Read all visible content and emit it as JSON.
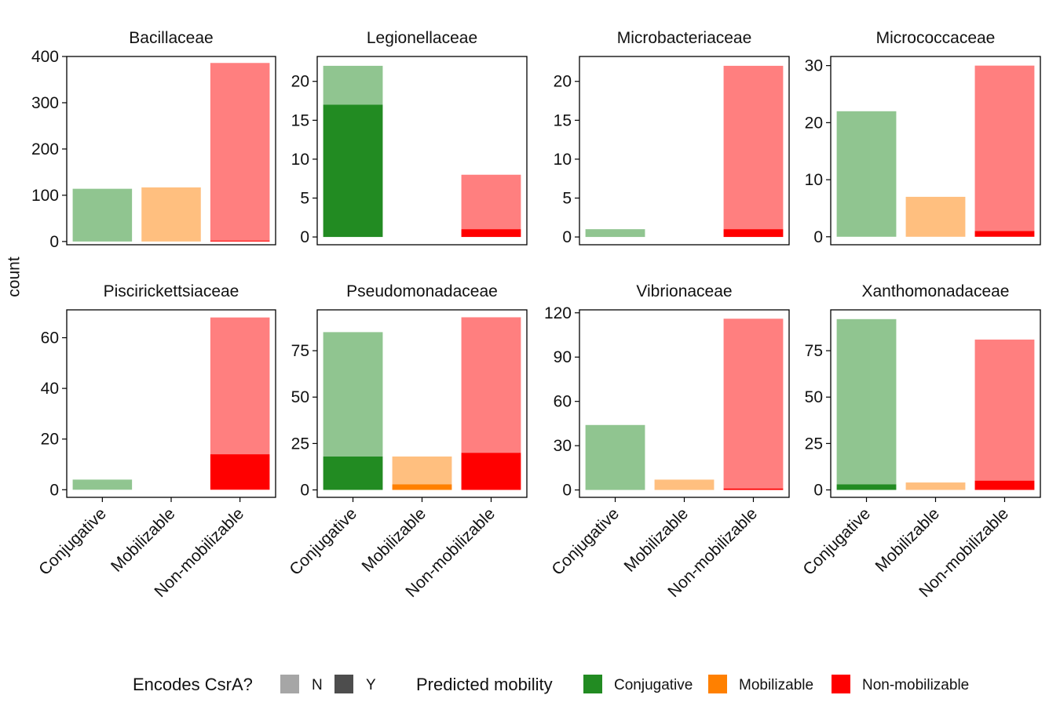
{
  "chart_data": {
    "type": "bar",
    "stacked": true,
    "ylabel": "count",
    "categories": [
      "Conjugative",
      "Mobilizable",
      "Non-mobilizable"
    ],
    "colors": {
      "Conjugative": "#228B22",
      "Mobilizable": "#FF8000",
      "Non-mobilizable": "#FF0000"
    },
    "alpha": {
      "N": 0.5,
      "Y": 1.0
    },
    "grid": false,
    "legend": {
      "position": "bottom",
      "csra_title": "Encodes CsrA?",
      "csra_entries": [
        {
          "key": "N",
          "label": "N",
          "color": "#A6A6A6"
        },
        {
          "key": "Y",
          "label": "Y",
          "color": "#4D4D4D"
        }
      ],
      "mobility_title": "Predicted mobility",
      "mobility_entries": [
        {
          "label": "Conjugative",
          "color": "#228B22"
        },
        {
          "label": "Mobilizable",
          "color": "#FF8000"
        },
        {
          "label": "Non-mobilizable",
          "color": "#FF0000"
        }
      ]
    },
    "facets": [
      {
        "title": "Bacillaceae",
        "ylim": [
          -7,
          400
        ],
        "yticks": [
          0,
          100,
          200,
          300,
          400
        ],
        "bars": [
          {
            "category": "Conjugative",
            "N": 114,
            "Y": 0
          },
          {
            "category": "Mobilizable",
            "N": 117,
            "Y": 0
          },
          {
            "category": "Non-mobilizable",
            "N": 384,
            "Y": 2
          }
        ]
      },
      {
        "title": "Legionellaceae",
        "ylim": [
          -1,
          23.2
        ],
        "yticks": [
          0,
          5,
          10,
          15,
          20
        ],
        "bars": [
          {
            "category": "Conjugative",
            "N": 5,
            "Y": 17
          },
          {
            "category": "Mobilizable",
            "N": 0,
            "Y": 0
          },
          {
            "category": "Non-mobilizable",
            "N": 7,
            "Y": 1
          }
        ]
      },
      {
        "title": "Microbacteriaceae",
        "ylim": [
          -1,
          23.2
        ],
        "yticks": [
          0,
          5,
          10,
          15,
          20
        ],
        "bars": [
          {
            "category": "Conjugative",
            "N": 1,
            "Y": 0
          },
          {
            "category": "Mobilizable",
            "N": 0,
            "Y": 0
          },
          {
            "category": "Non-mobilizable",
            "N": 21,
            "Y": 1
          }
        ]
      },
      {
        "title": "Micrococcaceae",
        "ylim": [
          -1.4,
          31.6
        ],
        "yticks": [
          0,
          10,
          20,
          30
        ],
        "bars": [
          {
            "category": "Conjugative",
            "N": 22,
            "Y": 0
          },
          {
            "category": "Mobilizable",
            "N": 7,
            "Y": 0
          },
          {
            "category": "Non-mobilizable",
            "N": 29,
            "Y": 1
          }
        ]
      },
      {
        "title": "Piscirickettsiaceae",
        "ylim": [
          -3,
          71
        ],
        "yticks": [
          0,
          20,
          40,
          60
        ],
        "bars": [
          {
            "category": "Conjugative",
            "N": 4,
            "Y": 0
          },
          {
            "category": "Mobilizable",
            "N": 0,
            "Y": 0
          },
          {
            "category": "Non-mobilizable",
            "N": 54,
            "Y": 14
          }
        ]
      },
      {
        "title": "Pseudomonadaceae",
        "ylim": [
          -4,
          97
        ],
        "yticks": [
          0,
          25,
          50,
          75
        ],
        "bars": [
          {
            "category": "Conjugative",
            "N": 67,
            "Y": 18
          },
          {
            "category": "Mobilizable",
            "N": 15,
            "Y": 3
          },
          {
            "category": "Non-mobilizable",
            "N": 73,
            "Y": 20
          }
        ]
      },
      {
        "title": "Vibrionaceae",
        "ylim": [
          -5,
          122
        ],
        "yticks": [
          0,
          30,
          60,
          90,
          120
        ],
        "bars": [
          {
            "category": "Conjugative",
            "N": 44,
            "Y": 0
          },
          {
            "category": "Mobilizable",
            "N": 7,
            "Y": 0
          },
          {
            "category": "Non-mobilizable",
            "N": 115,
            "Y": 1
          }
        ]
      },
      {
        "title": "Xanthomonadaceae",
        "ylim": [
          -4,
          97
        ],
        "yticks": [
          0,
          25,
          50,
          75
        ],
        "bars": [
          {
            "category": "Conjugative",
            "N": 89,
            "Y": 3
          },
          {
            "category": "Mobilizable",
            "N": 4,
            "Y": 0
          },
          {
            "category": "Non-mobilizable",
            "N": 76,
            "Y": 5
          }
        ]
      }
    ]
  }
}
